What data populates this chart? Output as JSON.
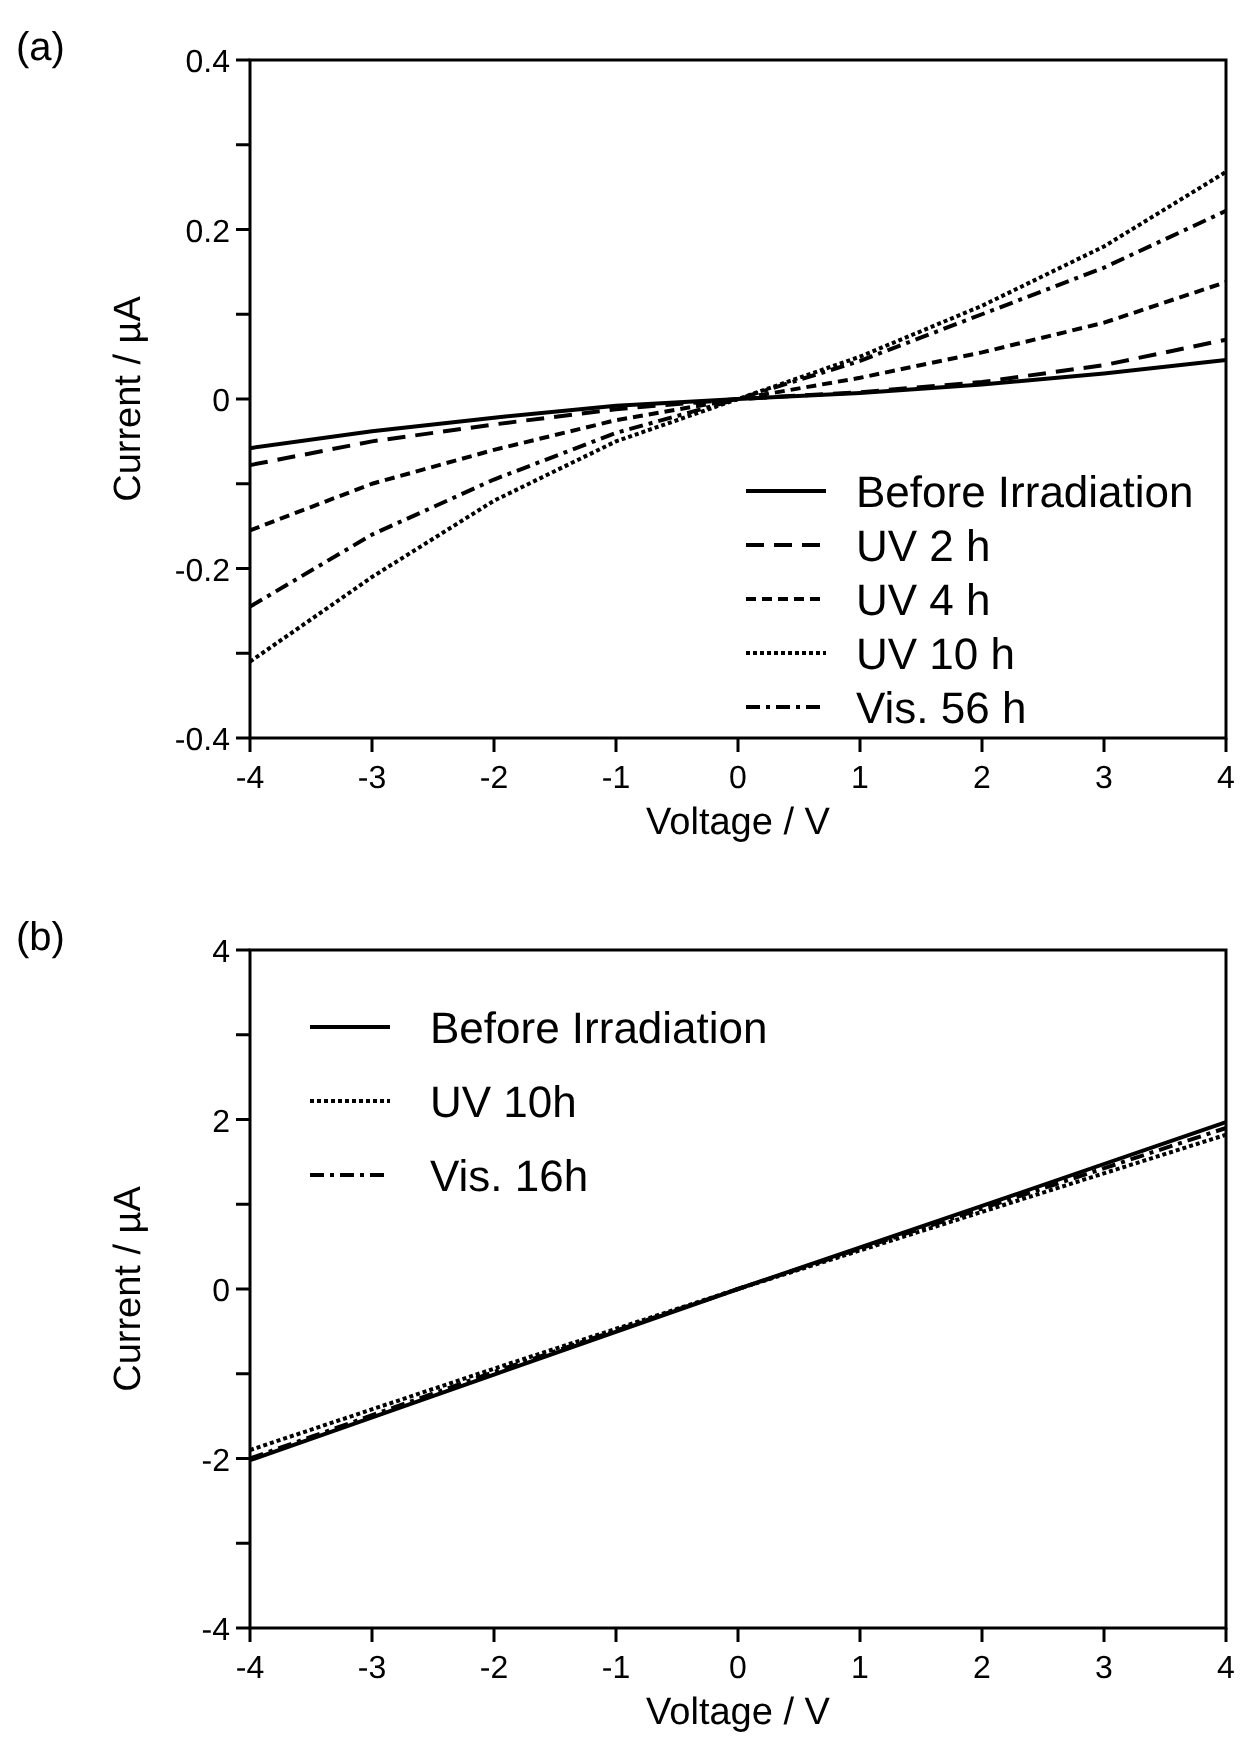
{
  "chart_data": [
    {
      "type": "line",
      "title": "(a)",
      "xlabel": "Voltage / V",
      "ylabel": "Current / µA",
      "x": [
        -4,
        -3,
        -2,
        -1,
        0,
        1,
        2,
        3,
        4
      ],
      "xlim": [
        -4,
        4
      ],
      "xticks": [
        -4,
        -3,
        -2,
        -1,
        0,
        1,
        2,
        3,
        4
      ],
      "ylim": [
        -0.4,
        0.4
      ],
      "yticks": [
        -0.4,
        {
          "value": -0.3,
          "label": null
        },
        -0.2,
        {
          "value": -0.1,
          "label": null
        },
        0,
        {
          "value": 0.1,
          "label": null
        },
        0.2,
        {
          "value": 0.3,
          "label": null
        },
        0.4
      ],
      "legend": "bottom right",
      "grid": false,
      "marker": "none",
      "series": [
        {
          "name": "Before Irradiation",
          "color": "#000000",
          "line_style": "solid",
          "values": [
            -0.058,
            -0.038,
            -0.022,
            -0.008,
            0,
            0.007,
            0.017,
            0.03,
            0.046
          ]
        },
        {
          "name": "UV 2 h",
          "color": "#000000",
          "line_style": "long-dashed",
          "values": [
            -0.078,
            -0.05,
            -0.03,
            -0.012,
            0,
            0.008,
            0.02,
            0.04,
            0.07
          ]
        },
        {
          "name": "UV 4 h",
          "color": "#000000",
          "line_style": "dashed",
          "values": [
            -0.155,
            -0.1,
            -0.06,
            -0.025,
            0,
            0.025,
            0.055,
            0.09,
            0.138
          ]
        },
        {
          "name": "UV 10 h",
          "color": "#000000",
          "line_style": "dotted",
          "values": [
            -0.31,
            -0.21,
            -0.12,
            -0.05,
            0,
            0.05,
            0.11,
            0.18,
            0.268
          ]
        },
        {
          "name": "Vis. 56 h",
          "color": "#000000",
          "line_style": "dash-dot",
          "values": [
            -0.245,
            -0.16,
            -0.095,
            -0.04,
            0,
            0.045,
            0.1,
            0.155,
            0.222
          ]
        }
      ]
    },
    {
      "type": "line",
      "title": "(b)",
      "xlabel": "Voltage / V",
      "ylabel": "Current / µA",
      "x": [
        -4,
        -2,
        0,
        2,
        4
      ],
      "xlim": [
        -4,
        4
      ],
      "xticks": [
        -4,
        -3,
        -2,
        -1,
        0,
        1,
        2,
        3,
        4
      ],
      "ylim": [
        -4,
        4
      ],
      "yticks": [
        -4,
        {
          "value": -3,
          "label": null
        },
        -2,
        {
          "value": -1,
          "label": null
        },
        0,
        {
          "value": 1,
          "label": null
        },
        2,
        {
          "value": 3,
          "label": null
        },
        4
      ],
      "legend": "top left",
      "grid": false,
      "marker": "none",
      "series": [
        {
          "name": "Before Irradiation",
          "color": "#000000",
          "line_style": "solid",
          "values": [
            -2.02,
            -1.01,
            0,
            0.98,
            1.97
          ]
        },
        {
          "name": "UV 10h",
          "color": "#000000",
          "line_style": "dotted",
          "values": [
            -1.9,
            -0.94,
            0,
            0.91,
            1.82
          ]
        },
        {
          "name": "Vis. 16h",
          "color": "#000000",
          "line_style": "dash-dot",
          "values": [
            -2.0,
            -0.98,
            0,
            0.95,
            1.9
          ]
        }
      ]
    }
  ]
}
